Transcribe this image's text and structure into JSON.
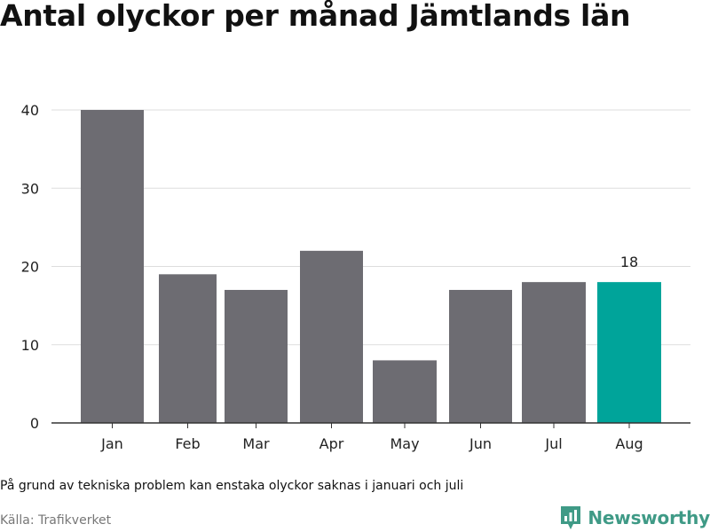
{
  "title": "Antal olyckor per månad Jämtlands län",
  "note": "På grund av tekniska problem kan enstaka olyckor saknas i januari och juli",
  "source": "Källa: Trafikverket",
  "brand": {
    "name": "Newsworthy",
    "icon": "newsworthy-logo-icon",
    "color": "#3f9a86"
  },
  "colors": {
    "bar": "#6d6c72",
    "highlight": "#00a49a",
    "grid": "#dddddd",
    "axis": "#333333"
  },
  "chart_data": {
    "type": "bar",
    "title": "Antal olyckor per månad Jämtlands län",
    "categories": [
      "Jan",
      "Feb",
      "Mar",
      "Apr",
      "May",
      "Jun",
      "Jul",
      "Aug"
    ],
    "values": [
      40,
      19,
      17,
      22,
      8,
      17,
      18,
      18
    ],
    "highlight_index": 7,
    "data_labels": [
      {
        "index": 7,
        "text": "18"
      }
    ],
    "ylim": [
      0,
      40
    ],
    "yticks": [
      "0",
      "10",
      "20",
      "30",
      "40"
    ],
    "xlabel": "",
    "ylabel": "",
    "grid": true,
    "legend": "none"
  }
}
